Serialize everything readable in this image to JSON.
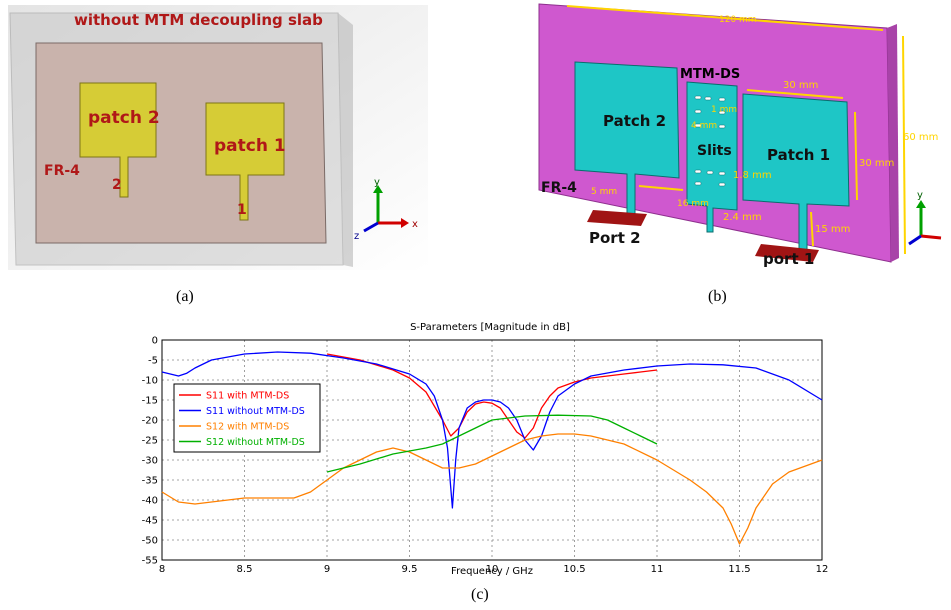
{
  "panel_a": {
    "title": "without MTM decoupling slab",
    "substrate_label": "FR-4",
    "patch2_label": "patch 2",
    "patch1_label": "patch 1",
    "port2_num": "2",
    "port1_num": "1",
    "axis_y": "y",
    "axis_x": "x",
    "axis_z": "z",
    "caption": "(a)"
  },
  "panel_b": {
    "width_dim": "120 mm",
    "mtm_label": "MTM-DS",
    "patch2_label": "Patch 2",
    "patch1_label": "Patch 1",
    "slits_label": "Slits",
    "substrate_label": "FR-4",
    "dim_1mm": "1 mm",
    "dim_4mm": "4 mm",
    "dim_30mm_w": "30 mm",
    "dim_30mm_h": "30 mm",
    "dim_1_8mm": "1.8 mm",
    "dim_5mm": "5 mm",
    "dim_16mm": "16 mm",
    "dim_2_4mm": "2.4 mm",
    "dim_15mm": "15 mm",
    "dim_height": "60 mm",
    "port2_label": "Port 2",
    "port1_label": "port 1",
    "axis_y": "y",
    "caption": "(b)"
  },
  "chart_caption": "(c)",
  "chart_data": {
    "type": "line",
    "title": "S-Parameters [Magnitude in dB]",
    "xlabel": "Frequency / GHz",
    "ylabel": "",
    "xlim": [
      8,
      12
    ],
    "ylim": [
      -55,
      0
    ],
    "xticks": [
      8,
      8.5,
      9,
      9.5,
      10,
      10.5,
      11,
      11.5,
      12
    ],
    "yticks": [
      0,
      -5,
      -10,
      -15,
      -20,
      -25,
      -30,
      -35,
      -40,
      -45,
      -50,
      -55
    ],
    "grid": true,
    "legend_position": "left",
    "series": [
      {
        "name": "S11 with MTM-DS",
        "color": "#ff0000",
        "x": [
          9.0,
          9.2,
          9.4,
          9.5,
          9.6,
          9.7,
          9.75,
          9.8,
          9.85,
          9.9,
          9.95,
          10.0,
          10.05,
          10.1,
          10.15,
          10.2,
          10.25,
          10.3,
          10.35,
          10.4,
          10.5,
          10.6,
          10.7,
          10.8,
          10.9,
          11.0
        ],
        "y": [
          -3.5,
          -5,
          -7.5,
          -9.5,
          -13,
          -20,
          -24,
          -22,
          -18,
          -16,
          -15.5,
          -15.8,
          -17,
          -20,
          -23,
          -24.5,
          -22,
          -17,
          -14,
          -12,
          -10.5,
          -9.5,
          -9,
          -8.5,
          -8,
          -7.5
        ]
      },
      {
        "name": "S11 without MTM-DS",
        "color": "#0000ff",
        "x": [
          8.0,
          8.05,
          8.1,
          8.15,
          8.2,
          8.3,
          8.5,
          8.7,
          8.9,
          9.1,
          9.3,
          9.5,
          9.6,
          9.65,
          9.7,
          9.73,
          9.76,
          9.78,
          9.8,
          9.85,
          9.9,
          9.95,
          10.0,
          10.05,
          10.1,
          10.15,
          10.2,
          10.25,
          10.3,
          10.35,
          10.4,
          10.5,
          10.6,
          10.8,
          11.0,
          11.2,
          11.4,
          11.6,
          11.8,
          12.0
        ],
        "y": [
          -8,
          -8.5,
          -9,
          -8.3,
          -7,
          -5,
          -3.5,
          -3,
          -3.3,
          -4.5,
          -6,
          -8.5,
          -11,
          -14,
          -20,
          -27,
          -42,
          -30,
          -22,
          -17,
          -15.5,
          -15,
          -15,
          -15.5,
          -17,
          -20,
          -25,
          -27.5,
          -24,
          -18,
          -14,
          -11,
          -9,
          -7.5,
          -6.5,
          -6,
          -6.2,
          -7,
          -10,
          -15
        ]
      },
      {
        "name": "S12 with MTM-DS",
        "color": "#ff8000",
        "x": [
          8.0,
          8.1,
          8.2,
          8.3,
          8.5,
          8.7,
          8.8,
          8.9,
          9.0,
          9.1,
          9.2,
          9.3,
          9.4,
          9.5,
          9.6,
          9.7,
          9.8,
          9.9,
          10.0,
          10.1,
          10.2,
          10.3,
          10.4,
          10.5,
          10.6,
          10.8,
          11.0,
          11.2,
          11.3,
          11.4,
          11.45,
          11.5,
          11.55,
          11.6,
          11.7,
          11.8,
          12.0
        ],
        "y": [
          -38,
          -40.5,
          -41,
          -40.5,
          -39.5,
          -39.5,
          -39.5,
          -38,
          -35,
          -32,
          -30,
          -28,
          -27,
          -28,
          -30,
          -32,
          -32,
          -31,
          -29,
          -27,
          -25,
          -24,
          -23.5,
          -23.5,
          -24,
          -26,
          -30,
          -35,
          -38,
          -42,
          -46,
          -51,
          -47,
          -42,
          -36,
          -33,
          -30
        ]
      },
      {
        "name": "S12 without MTM-DS",
        "color": "#00b000",
        "x": [
          9.0,
          9.2,
          9.4,
          9.6,
          9.7,
          9.8,
          9.9,
          10.0,
          10.1,
          10.2,
          10.4,
          10.6,
          10.7,
          10.8,
          10.9,
          11.0
        ],
        "y": [
          -33,
          -31,
          -28.5,
          -27,
          -26,
          -24,
          -22,
          -20,
          -19.5,
          -19,
          -18.8,
          -19,
          -20,
          -22,
          -24,
          -26
        ]
      }
    ]
  }
}
